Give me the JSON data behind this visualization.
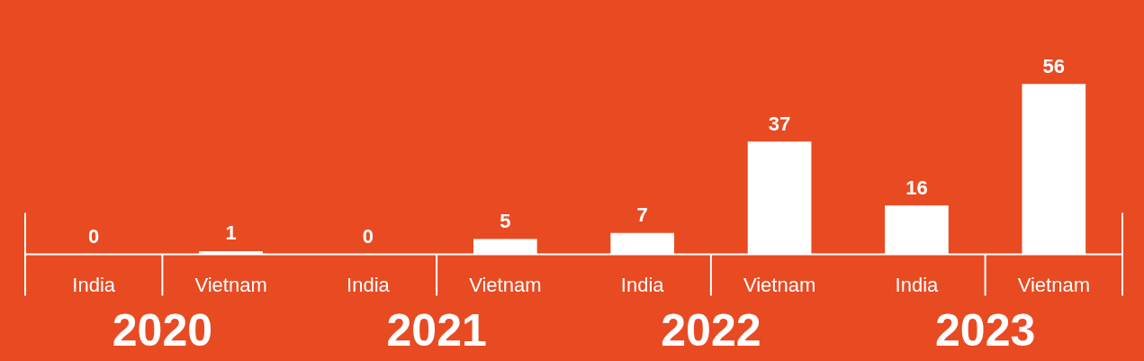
{
  "chart_data": {
    "type": "bar",
    "categories": [
      "India",
      "Vietnam",
      "India",
      "Vietnam",
      "India",
      "Vietnam",
      "India",
      "Vietnam"
    ],
    "values": [
      0,
      1,
      0,
      5,
      7,
      37,
      16,
      56
    ],
    "color": "#ffffff",
    "data_labels": true,
    "tick_labels": "x",
    "annotations": [
      "2020",
      "2021",
      "2022",
      "2023"
    ]
  }
}
